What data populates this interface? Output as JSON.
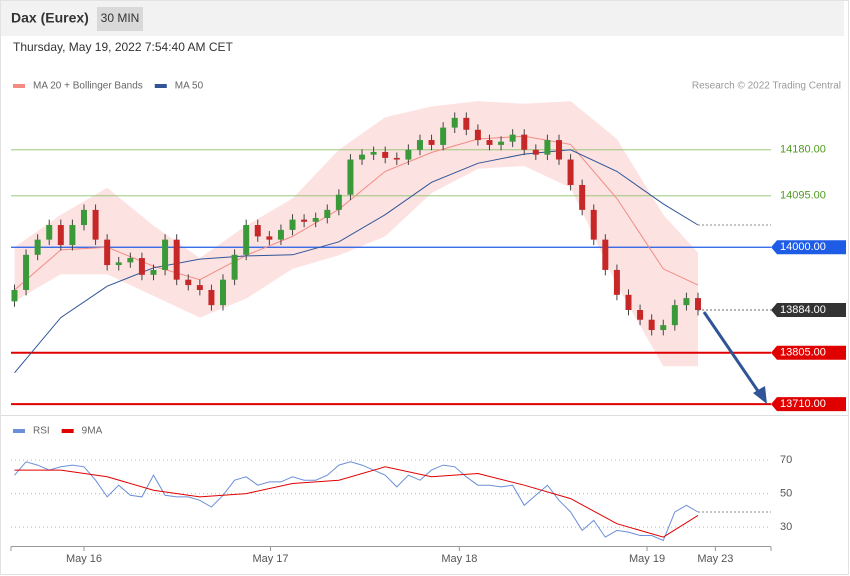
{
  "header": {
    "title": "Dax (Eurex)",
    "timeframe": "30 MIN",
    "date": "Thursday, May 19, 2022 7:54:40 AM CET",
    "credit": "Research © 2022 Trading Central"
  },
  "chart_data": [
    {
      "type": "candlestick",
      "x": [
        0,
        1,
        2,
        3,
        4,
        5,
        6,
        7,
        8,
        9,
        10,
        11,
        12,
        13,
        14,
        15,
        16,
        17,
        18,
        19,
        20,
        21,
        22,
        23,
        24,
        25,
        26,
        27,
        28,
        29,
        30,
        31,
        32,
        33,
        34,
        35,
        36,
        37,
        38,
        39,
        40,
        41,
        42,
        43,
        44,
        45,
        46,
        47,
        48,
        49,
        50,
        51,
        52,
        53,
        54,
        55,
        56,
        57,
        58,
        59
      ],
      "candles": {
        "up_color": "#3a9a3a",
        "down_color": "#c62828",
        "open": [
          13900,
          13921,
          13986,
          14014,
          14041,
          14004,
          14041,
          14069,
          14014,
          13967,
          13972,
          13980,
          13949,
          13958,
          14014,
          13940,
          13930,
          13921,
          13893,
          13940,
          13986,
          14041,
          14020,
          14014,
          14032,
          14051,
          14047,
          14054,
          14069,
          14097,
          14162,
          14171,
          14176,
          14165,
          14162,
          14180,
          14198,
          14189,
          14221,
          14239,
          14217,
          14198,
          14189,
          14195,
          14208,
          14180,
          14171,
          14198,
          14162,
          14115,
          14069,
          14014,
          13958,
          13912,
          13884,
          13866,
          13847,
          13856,
          13893,
          13906
        ],
        "high": [
          13931,
          13996,
          14024,
          14051,
          14051,
          14051,
          14079,
          14079,
          14024,
          13982,
          13990,
          13990,
          13968,
          14024,
          14024,
          13950,
          13940,
          13931,
          13950,
          13996,
          14051,
          14051,
          14030,
          14042,
          14061,
          14061,
          14064,
          14079,
          14107,
          14172,
          14181,
          14186,
          14186,
          14175,
          14190,
          14208,
          14208,
          14231,
          14249,
          14249,
          14227,
          14208,
          14205,
          14218,
          14218,
          14190,
          14208,
          14208,
          14172,
          14125,
          14079,
          14024,
          13968,
          13922,
          13894,
          13876,
          13866,
          13903,
          13916,
          13916
        ],
        "low": [
          13890,
          13911,
          13976,
          14004,
          13994,
          13994,
          14031,
          14004,
          13957,
          13957,
          13962,
          13939,
          13939,
          13948,
          13930,
          13920,
          13911,
          13883,
          13883,
          13930,
          13976,
          14010,
          14004,
          14004,
          14022,
          14037,
          14037,
          14044,
          14059,
          14087,
          14152,
          14161,
          14155,
          14152,
          14152,
          14170,
          14179,
          14179,
          14211,
          14207,
          14188,
          14179,
          14179,
          14185,
          14170,
          14161,
          14161,
          14152,
          14105,
          14059,
          14004,
          13948,
          13902,
          13874,
          13856,
          13837,
          13837,
          13846,
          13883,
          13874
        ],
        "close": [
          13921,
          13986,
          14014,
          14041,
          14004,
          14041,
          14069,
          14014,
          13967,
          13972,
          13980,
          13949,
          13958,
          14014,
          13940,
          13930,
          13921,
          13893,
          13940,
          13986,
          14041,
          14020,
          14014,
          14032,
          14051,
          14047,
          14054,
          14069,
          14097,
          14162,
          14171,
          14176,
          14165,
          14162,
          14180,
          14198,
          14189,
          14221,
          14239,
          14217,
          14198,
          14189,
          14195,
          14208,
          14180,
          14171,
          14198,
          14162,
          14115,
          14069,
          14014,
          13958,
          13912,
          13884,
          13866,
          13847,
          13856,
          13893,
          13906,
          13884
        ]
      },
      "series": [
        {
          "name": "MA 20 + Bollinger Bands",
          "color": "#f28b82",
          "band_color": "#fde2e2",
          "x": [
            0,
            4,
            8,
            12,
            16,
            20,
            24,
            28,
            32,
            36,
            40,
            44,
            48,
            52,
            56,
            59
          ],
          "values": [
            13921,
            13995,
            14000,
            13965,
            13940,
            13985,
            14020,
            14070,
            14140,
            14175,
            14200,
            14205,
            14190,
            14090,
            13960,
            13930
          ],
          "upper": [
            14000,
            14060,
            14110,
            14040,
            13980,
            14040,
            14090,
            14180,
            14240,
            14260,
            14270,
            14265,
            14270,
            14200,
            14060,
            13990
          ],
          "lower": [
            13900,
            13950,
            13950,
            13910,
            13870,
            13905,
            13960,
            13985,
            14020,
            14100,
            14145,
            14150,
            14110,
            13930,
            13780,
            13780
          ]
        },
        {
          "name": "MA 50",
          "color": "#2f5597",
          "x": [
            0,
            4,
            8,
            12,
            16,
            20,
            24,
            28,
            32,
            36,
            40,
            44,
            48,
            52,
            56,
            59
          ],
          "values": [
            13768,
            13870,
            13928,
            13962,
            13978,
            13984,
            13986,
            14010,
            14060,
            14120,
            14155,
            14172,
            14180,
            14140,
            14080,
            14041
          ]
        }
      ],
      "levels": [
        {
          "value": 14180,
          "label": "14180.00",
          "color": "#8dc26a",
          "text_color": "#4f9a1f",
          "style": "thin",
          "box": false
        },
        {
          "value": 14095,
          "label": "14095.00",
          "color": "#8dc26a",
          "text_color": "#4f9a1f",
          "style": "thin",
          "box": false
        },
        {
          "value": 14000,
          "label": "14000.00",
          "color": "#1f5ce6",
          "text_color": "#ffffff",
          "style": "solid",
          "box": true
        },
        {
          "value": 13884,
          "label": "13884.00",
          "color": "#333333",
          "text_color": "#ffffff",
          "style": "dotted",
          "box": true
        },
        {
          "value": 13805,
          "label": "13805.00",
          "color": "#e00000",
          "text_color": "#ffffff",
          "style": "thick",
          "box": true
        },
        {
          "value": 13710,
          "label": "13710.00",
          "color": "#e00000",
          "text_color": "#ffffff",
          "style": "thick",
          "box": true
        }
      ],
      "xlim": [
        -0.3,
        65.3
      ],
      "ylim": [
        13690,
        14272
      ]
    },
    {
      "type": "line",
      "series": [
        {
          "name": "RSI",
          "color": "#6b8fd9",
          "x": [
            0,
            1,
            2,
            3,
            4,
            5,
            6,
            7,
            8,
            9,
            10,
            11,
            12,
            13,
            14,
            15,
            16,
            17,
            18,
            19,
            20,
            21,
            22,
            23,
            24,
            25,
            26,
            27,
            28,
            29,
            30,
            31,
            32,
            33,
            34,
            35,
            36,
            37,
            38,
            39,
            40,
            41,
            42,
            43,
            44,
            45,
            46,
            47,
            48,
            49,
            50,
            51,
            52,
            53,
            54,
            55,
            56,
            57,
            58,
            59
          ],
          "values": [
            61,
            69,
            67,
            64,
            66,
            67,
            66,
            58,
            48,
            55,
            49,
            48,
            61,
            49,
            48,
            48,
            46,
            42,
            49,
            58,
            60,
            55,
            57,
            57,
            60,
            58,
            58,
            61,
            67,
            69,
            67,
            64,
            61,
            54,
            61,
            58,
            64,
            67,
            66,
            60,
            55,
            55,
            54,
            55,
            43,
            49,
            55,
            46,
            39,
            28,
            34,
            24,
            28,
            27,
            25,
            25,
            22,
            39,
            43,
            39
          ]
        },
        {
          "name": "9MA",
          "color": "#e00000",
          "x": [
            0,
            4,
            8,
            12,
            16,
            20,
            24,
            28,
            32,
            36,
            40,
            44,
            48,
            52,
            56,
            59
          ],
          "values": [
            64,
            64,
            60,
            52,
            48,
            50,
            56,
            58,
            66,
            60,
            62,
            55,
            47,
            32,
            24,
            37
          ]
        }
      ],
      "xlim": [
        -0.3,
        65.3
      ],
      "ylim": [
        19,
        82
      ],
      "yticks": [
        30,
        50,
        70
      ],
      "grid": true,
      "xticks": [
        {
          "value": 6,
          "label": "May 16"
        },
        {
          "value": 22.1,
          "label": "May 17"
        },
        {
          "value": 38.4,
          "label": "May 18"
        },
        {
          "value": 54.6,
          "label": "May 19"
        },
        {
          "value": 60.5,
          "label": "May 23"
        }
      ]
    }
  ]
}
